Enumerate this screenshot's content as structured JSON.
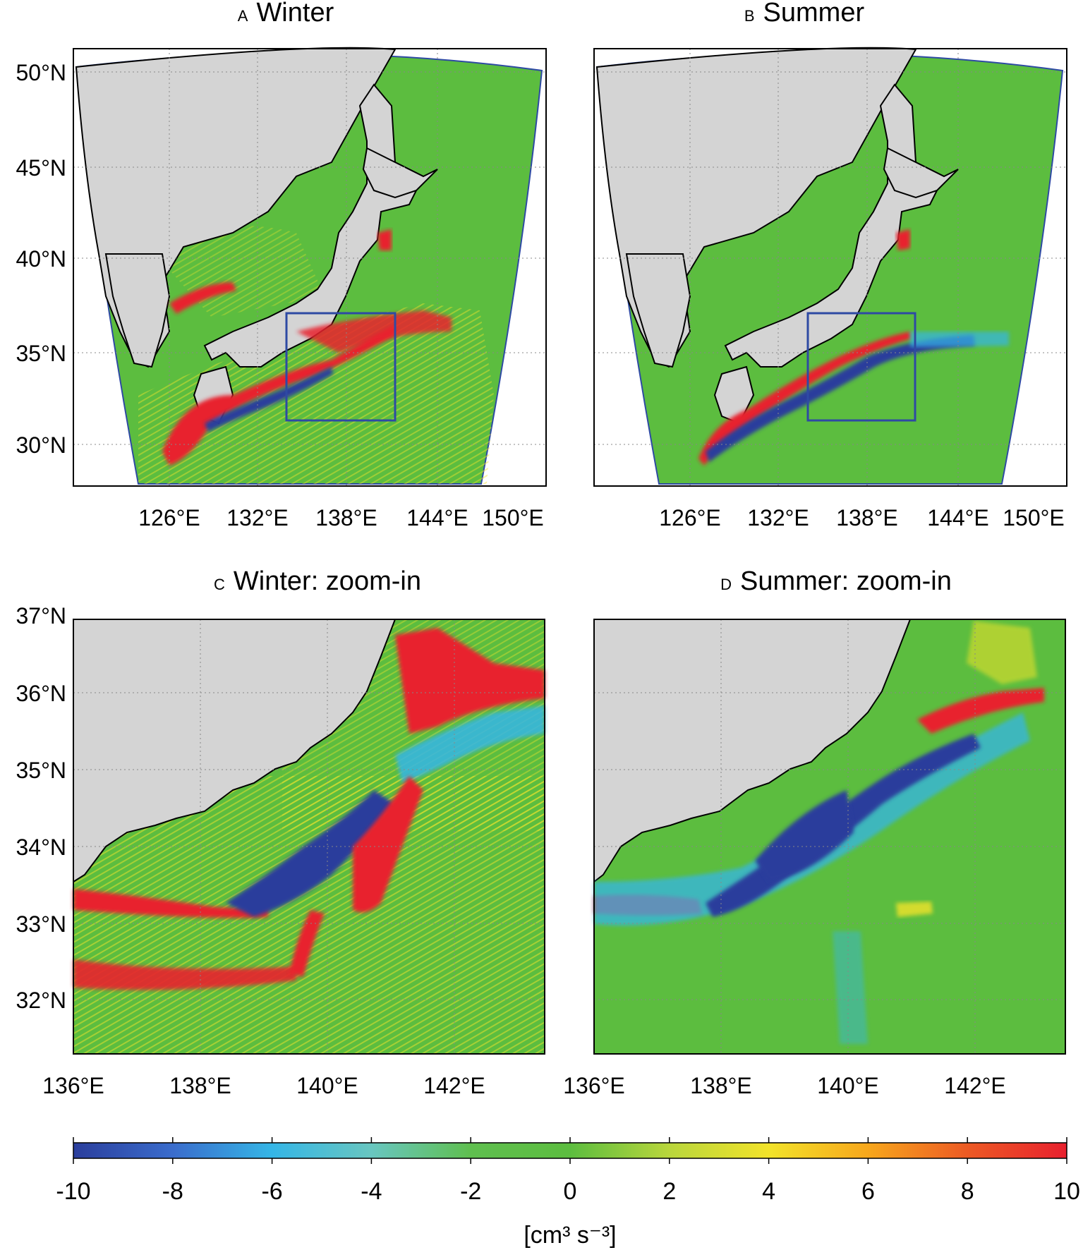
{
  "panels": [
    {
      "id": "A",
      "letter": "A",
      "title": "Winter",
      "lat_ticks": [
        50,
        45,
        40,
        35,
        30
      ],
      "lon_ticks": [
        126,
        132,
        138,
        144,
        150
      ],
      "lat_labels": [
        "50°N",
        "45°N",
        "40°N",
        "35°N",
        "30°N"
      ],
      "lon_labels": [
        "126°E",
        "132°E",
        "138°E",
        "144°E",
        "150°E"
      ],
      "zoom_box": {
        "lon": [
          136,
          143
        ],
        "lat": [
          31,
          37
        ]
      }
    },
    {
      "id": "B",
      "letter": "B",
      "title": "Summer",
      "lat_ticks": [],
      "lon_ticks": [
        126,
        132,
        138,
        144,
        150
      ],
      "lat_labels": [],
      "lon_labels": [
        "126°E",
        "132°E",
        "138°E",
        "144°E",
        "150°E"
      ],
      "zoom_box": {
        "lon": [
          136,
          143
        ],
        "lat": [
          31,
          37
        ]
      }
    },
    {
      "id": "C",
      "letter": "C",
      "title": "Winter: zoom-in",
      "lat_ticks": [
        37,
        36,
        35,
        34,
        33,
        32
      ],
      "lon_ticks": [
        136,
        138,
        140,
        142
      ],
      "lat_labels": [
        "37°N",
        "36°N",
        "35°N",
        "34°N",
        "33°N",
        "32°N"
      ],
      "lon_labels": [
        "136°E",
        "138°E",
        "140°E",
        "142°E"
      ]
    },
    {
      "id": "D",
      "letter": "D",
      "title": "Summer: zoom-in",
      "lat_ticks": [],
      "lon_ticks": [
        136,
        138,
        140,
        142
      ],
      "lat_labels": [],
      "lon_labels": [
        "136°E",
        "138°E",
        "140°E",
        "142°E"
      ]
    }
  ],
  "colorbar": {
    "min": -10,
    "max": 10,
    "tick_labels": [
      "-10",
      "-8",
      "-6",
      "-4",
      "-2",
      "0",
      "2",
      "4",
      "6",
      "8",
      "10"
    ],
    "unit_label": "[cm³ s⁻³]",
    "colors": [
      "#2b3e9c",
      "#3a6ccc",
      "#35b6e6",
      "#68c6c0",
      "#5fbf4f",
      "#5cbd3f",
      "#b9d63c",
      "#f2e32a",
      "#f7a71c",
      "#ec5a24",
      "#e8202e"
    ]
  },
  "map_colors": {
    "ocean": "#5cbd3f",
    "land": "#d4d4d4",
    "coast": "#000000",
    "domain_edge": "#2e4aa3",
    "box": "#2e4aa3",
    "positive": "#e8202e",
    "yellow": "#f2e32a",
    "negative": "#2b3e9c",
    "cyan": "#35b6e6"
  }
}
